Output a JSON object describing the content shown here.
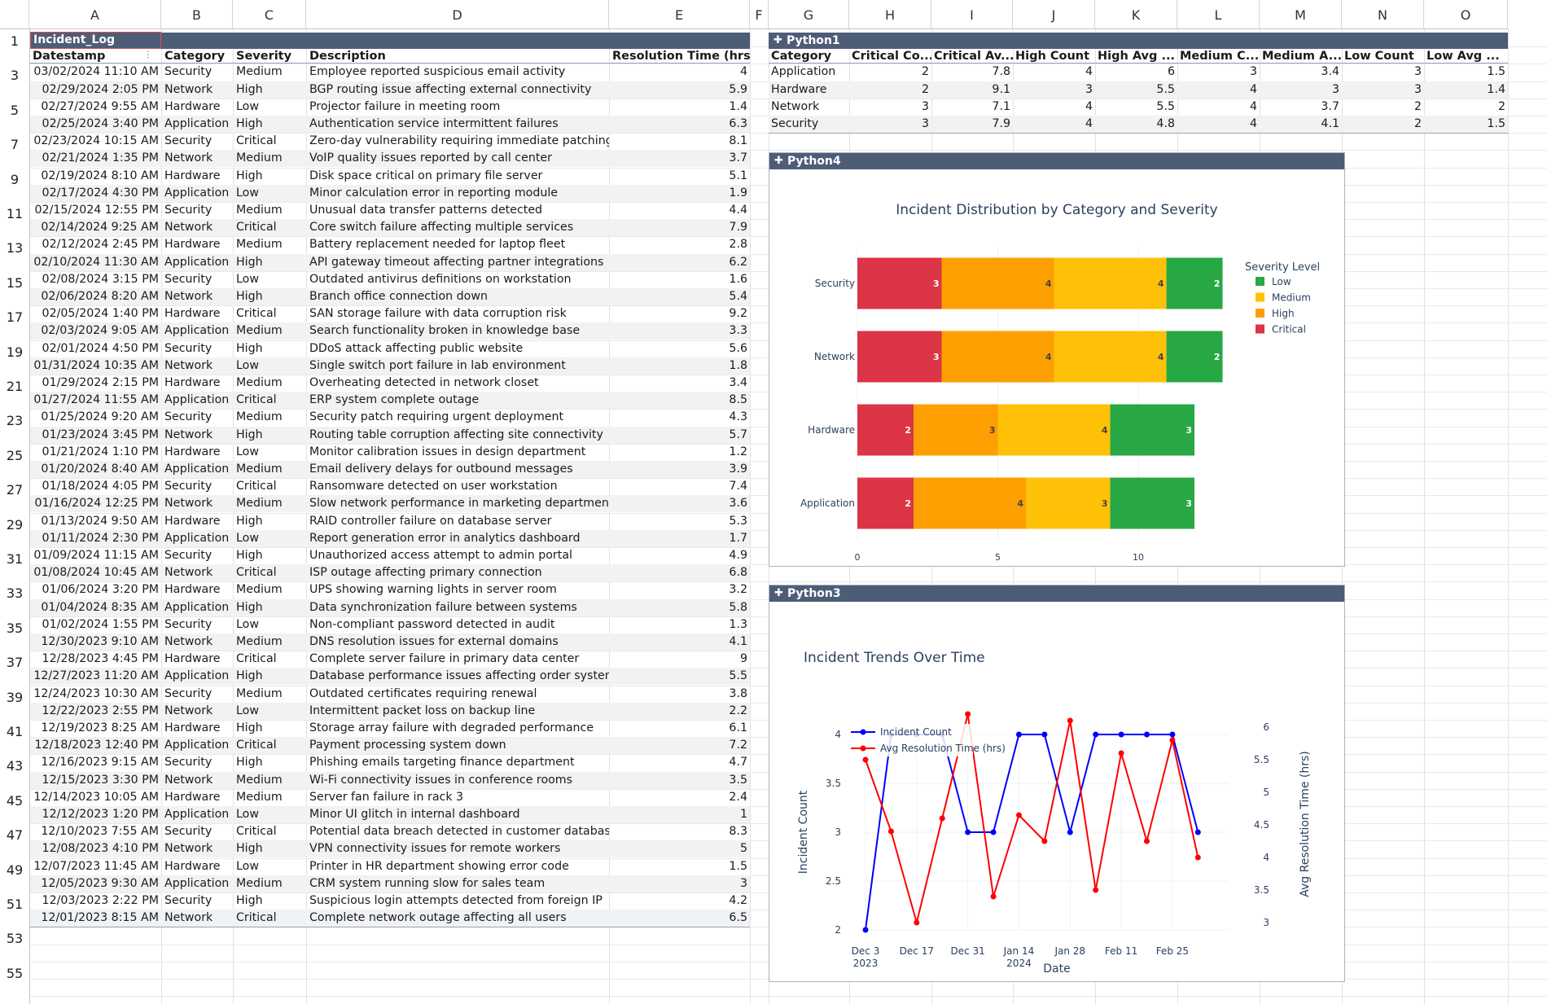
{
  "columns": [
    "A",
    "B",
    "C",
    "D",
    "E",
    "F",
    "G",
    "H",
    "I",
    "J",
    "K",
    "L",
    "M",
    "N",
    "O"
  ],
  "row_numbers": [
    "1",
    "3",
    "5",
    "7",
    "9",
    "11",
    "13",
    "15",
    "17",
    "19",
    "21",
    "23",
    "25",
    "27",
    "29",
    "31",
    "33",
    "35",
    "37",
    "39",
    "41",
    "43",
    "45",
    "47",
    "49",
    "51",
    "53",
    "55"
  ],
  "incident_table": {
    "name": "Incident_Log",
    "headers": [
      "Datestamp",
      "Category",
      "Severity",
      "Description",
      "Resolution Time (hrs)"
    ],
    "rows": [
      [
        "03/02/2024 11:10 AM",
        "Security",
        "Medium",
        "Employee reported suspicious email activity",
        "4"
      ],
      [
        "02/29/2024 2:05 PM",
        "Network",
        "High",
        "BGP routing issue affecting external connectivity",
        "5.9"
      ],
      [
        "02/27/2024 9:55 AM",
        "Hardware",
        "Low",
        "Projector failure in meeting room",
        "1.4"
      ],
      [
        "02/25/2024 3:40 PM",
        "Application",
        "High",
        "Authentication service intermittent failures",
        "6.3"
      ],
      [
        "02/23/2024 10:15 AM",
        "Security",
        "Critical",
        "Zero-day vulnerability requiring immediate patching",
        "8.1"
      ],
      [
        "02/21/2024 1:35 PM",
        "Network",
        "Medium",
        "VoIP quality issues reported by call center",
        "3.7"
      ],
      [
        "02/19/2024 8:10 AM",
        "Hardware",
        "High",
        "Disk space critical on primary file server",
        "5.1"
      ],
      [
        "02/17/2024 4:30 PM",
        "Application",
        "Low",
        "Minor calculation error in reporting module",
        "1.9"
      ],
      [
        "02/15/2024 12:55 PM",
        "Security",
        "Medium",
        "Unusual data transfer patterns detected",
        "4.4"
      ],
      [
        "02/14/2024 9:25 AM",
        "Network",
        "Critical",
        "Core switch failure affecting multiple services",
        "7.9"
      ],
      [
        "02/12/2024 2:45 PM",
        "Hardware",
        "Medium",
        "Battery replacement needed for laptop fleet",
        "2.8"
      ],
      [
        "02/10/2024 11:30 AM",
        "Application",
        "High",
        "API gateway timeout affecting partner integrations",
        "6.2"
      ],
      [
        "02/08/2024 3:15 PM",
        "Security",
        "Low",
        "Outdated antivirus definitions on workstation",
        "1.6"
      ],
      [
        "02/06/2024 8:20 AM",
        "Network",
        "High",
        "Branch office connection down",
        "5.4"
      ],
      [
        "02/05/2024 1:40 PM",
        "Hardware",
        "Critical",
        "SAN storage failure with data corruption risk",
        "9.2"
      ],
      [
        "02/03/2024 9:05 AM",
        "Application",
        "Medium",
        "Search functionality broken in knowledge base",
        "3.3"
      ],
      [
        "02/01/2024 4:50 PM",
        "Security",
        "High",
        "DDoS attack affecting public website",
        "5.6"
      ],
      [
        "01/31/2024 10:35 AM",
        "Network",
        "Low",
        "Single switch port failure in lab environment",
        "1.8"
      ],
      [
        "01/29/2024 2:15 PM",
        "Hardware",
        "Medium",
        "Overheating detected in network closet",
        "3.4"
      ],
      [
        "01/27/2024 11:55 AM",
        "Application",
        "Critical",
        "ERP system complete outage",
        "8.5"
      ],
      [
        "01/25/2024 9:20 AM",
        "Security",
        "Medium",
        "Security patch requiring urgent deployment",
        "4.3"
      ],
      [
        "01/23/2024 3:45 PM",
        "Network",
        "High",
        "Routing table corruption affecting site connectivity",
        "5.7"
      ],
      [
        "01/21/2024 1:10 PM",
        "Hardware",
        "Low",
        "Monitor calibration issues in design department",
        "1.2"
      ],
      [
        "01/20/2024 8:40 AM",
        "Application",
        "Medium",
        "Email delivery delays for outbound messages",
        "3.9"
      ],
      [
        "01/18/2024 4:05 PM",
        "Security",
        "Critical",
        "Ransomware detected on user workstation",
        "7.4"
      ],
      [
        "01/16/2024 12:25 PM",
        "Network",
        "Medium",
        "Slow network performance in marketing department",
        "3.6"
      ],
      [
        "01/13/2024 9:50 AM",
        "Hardware",
        "High",
        "RAID controller failure on database server",
        "5.3"
      ],
      [
        "01/11/2024 2:30 PM",
        "Application",
        "Low",
        "Report generation error in analytics dashboard",
        "1.7"
      ],
      [
        "01/09/2024 11:15 AM",
        "Security",
        "High",
        "Unauthorized access attempt to admin portal",
        "4.9"
      ],
      [
        "01/08/2024 10:45 AM",
        "Network",
        "Critical",
        "ISP outage affecting primary connection",
        "6.8"
      ],
      [
        "01/06/2024 3:20 PM",
        "Hardware",
        "Medium",
        "UPS showing warning lights in server room",
        "3.2"
      ],
      [
        "01/04/2024 8:35 AM",
        "Application",
        "High",
        "Data synchronization failure between systems",
        "5.8"
      ],
      [
        "01/02/2024 1:55 PM",
        "Security",
        "Low",
        "Non-compliant password detected in audit",
        "1.3"
      ],
      [
        "12/30/2023 9:10 AM",
        "Network",
        "Medium",
        "DNS resolution issues for external domains",
        "4.1"
      ],
      [
        "12/28/2023 4:45 PM",
        "Hardware",
        "Critical",
        "Complete server failure in primary data center",
        "9"
      ],
      [
        "12/27/2023 11:20 AM",
        "Application",
        "High",
        "Database performance issues affecting order system",
        "5.5"
      ],
      [
        "12/24/2023 10:30 AM",
        "Security",
        "Medium",
        "Outdated certificates requiring renewal",
        "3.8"
      ],
      [
        "12/22/2023 2:55 PM",
        "Network",
        "Low",
        "Intermittent packet loss on backup line",
        "2.2"
      ],
      [
        "12/19/2023 8:25 AM",
        "Hardware",
        "High",
        "Storage array failure with degraded performance",
        "6.1"
      ],
      [
        "12/18/2023 12:40 PM",
        "Application",
        "Critical",
        "Payment processing system down",
        "7.2"
      ],
      [
        "12/16/2023 9:15 AM",
        "Security",
        "High",
        "Phishing emails targeting finance department",
        "4.7"
      ],
      [
        "12/15/2023 3:30 PM",
        "Network",
        "Medium",
        "Wi-Fi connectivity issues in conference rooms",
        "3.5"
      ],
      [
        "12/14/2023 10:05 AM",
        "Hardware",
        "Medium",
        "Server fan failure in rack 3",
        "2.4"
      ],
      [
        "12/12/2023 1:20 PM",
        "Application",
        "Low",
        "Minor UI glitch in internal dashboard",
        "1"
      ],
      [
        "12/10/2023 7:55 AM",
        "Security",
        "Critical",
        "Potential data breach detected in customer database",
        "8.3"
      ],
      [
        "12/08/2023 4:10 PM",
        "Network",
        "High",
        "VPN connectivity issues for remote workers",
        "5"
      ],
      [
        "12/07/2023 11:45 AM",
        "Hardware",
        "Low",
        "Printer in HR department showing error code",
        "1.5"
      ],
      [
        "12/05/2023 9:30 AM",
        "Application",
        "Medium",
        "CRM system running slow for sales team",
        "3"
      ],
      [
        "12/03/2023 2:22 PM",
        "Security",
        "High",
        "Suspicious login attempts detected from foreign IP",
        "4.2"
      ],
      [
        "12/01/2023 8:15 AM",
        "Network",
        "Critical",
        "Complete network outage affecting all users",
        "6.5"
      ]
    ]
  },
  "summary_table": {
    "name": "Python1",
    "icon": "python-object-icon",
    "headers": [
      "Category",
      "Critical Co...",
      "Critical Av...",
      "High Count",
      "High Avg ...",
      "Medium C...",
      "Medium A...",
      "Low Count",
      "Low Avg ..."
    ],
    "rows": [
      [
        "Application",
        "2",
        "7.8",
        "4",
        "6",
        "3",
        "3.4",
        "3",
        "1.5"
      ],
      [
        "Hardware",
        "2",
        "9.1",
        "3",
        "5.5",
        "4",
        "3",
        "3",
        "1.4"
      ],
      [
        "Network",
        "3",
        "7.1",
        "4",
        "5.5",
        "4",
        "3.7",
        "2",
        "2"
      ],
      [
        "Security",
        "3",
        "7.9",
        "4",
        "4.8",
        "4",
        "4.1",
        "2",
        "1.5"
      ]
    ]
  },
  "bar_card": {
    "name": "Python4"
  },
  "line_card": {
    "name": "Python3"
  },
  "chart_data": [
    {
      "type": "bar",
      "orientation": "horizontal",
      "stacked": true,
      "title": "Incident Distribution by Category and Severity",
      "categories": [
        "Application",
        "Hardware",
        "Network",
        "Security"
      ],
      "series": [
        {
          "name": "Critical",
          "color": "#dc3545",
          "values": [
            2,
            2,
            3,
            3
          ]
        },
        {
          "name": "High",
          "color": "#fd9f00",
          "values": [
            4,
            3,
            4,
            4
          ]
        },
        {
          "name": "Medium",
          "color": "#ffc107",
          "values": [
            3,
            4,
            4,
            4
          ]
        },
        {
          "name": "Low",
          "color": "#28a745",
          "values": [
            3,
            3,
            2,
            2
          ]
        }
      ],
      "legend_title": "Severity Level",
      "legend_order": [
        "Low",
        "Medium",
        "High",
        "Critical"
      ],
      "legend_colors": [
        "#28a745",
        "#ffc107",
        "#fd9f00",
        "#dc3545"
      ],
      "x_ticks": [
        "0",
        "5",
        "10"
      ],
      "xlim": [
        0,
        13.1
      ],
      "legend_position": "top-right"
    },
    {
      "type": "line",
      "title": "Incident Trends Over Time",
      "xlabel": "Date",
      "ylabel_left": "Incident Count",
      "ylabel_right": "Avg Resolution Time (hrs)",
      "x_ticks": [
        {
          "label": "Dec 3",
          "sub": "2023",
          "week": 0
        },
        {
          "label": "Dec 17",
          "sub": "",
          "week": 2
        },
        {
          "label": "Dec 31",
          "sub": "",
          "week": 4
        },
        {
          "label": "Jan 14",
          "sub": "2024",
          "week": 6
        },
        {
          "label": "Jan 28",
          "sub": "",
          "week": 8
        },
        {
          "label": "Feb 11",
          "sub": "",
          "week": 10
        },
        {
          "label": "Feb 25",
          "sub": "",
          "week": 12
        }
      ],
      "y_left_ticks": [
        "2",
        "2.5",
        "3",
        "3.5",
        "4"
      ],
      "y_left_range": [
        2,
        4
      ],
      "y_right_ticks": [
        "3",
        "3.5",
        "4",
        "4.5",
        "5",
        "5.5",
        "6"
      ],
      "y_right_range": [
        3,
        6
      ],
      "series": [
        {
          "name": "Incident Count",
          "color": "#0000ff",
          "axis": "left",
          "weeks": [
            0,
            1,
            2,
            3,
            4,
            5,
            6,
            7,
            8,
            9,
            10,
            11,
            12,
            13
          ],
          "values": [
            2,
            4,
            4,
            4,
            3,
            3,
            4,
            4,
            3,
            4,
            4,
            4,
            4,
            3
          ]
        },
        {
          "name": "Avg Resolution Time (hrs)",
          "color": "#ff0000",
          "axis": "right",
          "weeks": [
            0,
            1,
            2,
            3,
            4,
            5,
            6,
            7,
            8,
            9,
            10,
            11,
            12,
            13
          ],
          "values": [
            5.5,
            4.4,
            3.0,
            4.6,
            6.2,
            3.4,
            4.65,
            4.25,
            6.1,
            3.5,
            5.6,
            4.25,
            5.8,
            4.0
          ]
        }
      ],
      "legend_position": "top-left"
    }
  ]
}
